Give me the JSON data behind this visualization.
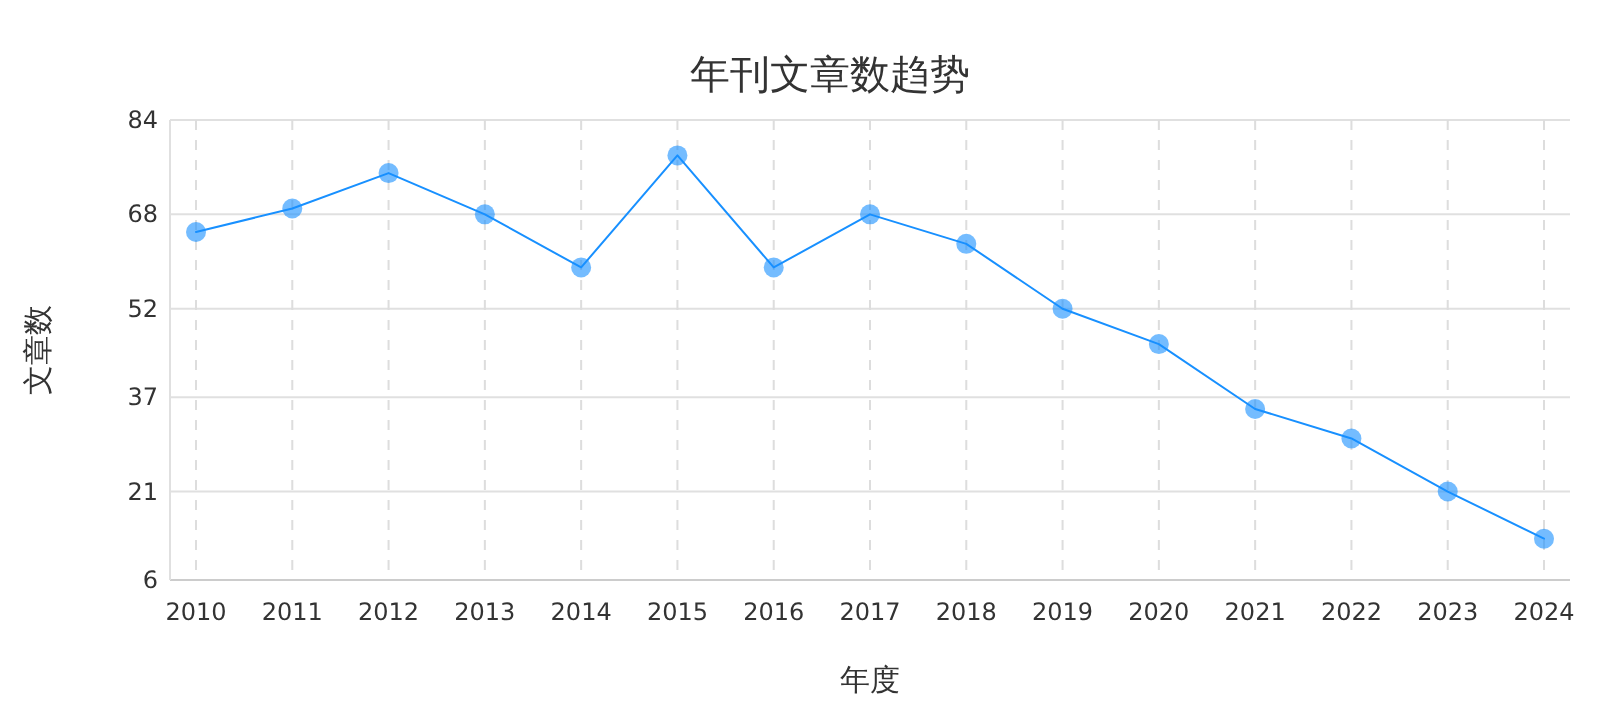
{
  "chart_data": {
    "type": "line",
    "title": "年刊文章数趋势",
    "xlabel": "年度",
    "ylabel": "文章数",
    "categories": [
      "2010",
      "2011",
      "2012",
      "2013",
      "2014",
      "2015",
      "2016",
      "2017",
      "2018",
      "2019",
      "2020",
      "2021",
      "2022",
      "2023",
      "2024"
    ],
    "series": [
      {
        "color": "#1890ff",
        "values": [
          65,
          69,
          75,
          68,
          59,
          78,
          59,
          68,
          63,
          52,
          46,
          35,
          30,
          21,
          13
        ]
      }
    ],
    "ylim": [
      6,
      84
    ],
    "yticks": [
      6,
      21,
      37,
      52,
      68,
      84
    ],
    "grid": true,
    "marker": "circle",
    "line_style": "solid"
  }
}
